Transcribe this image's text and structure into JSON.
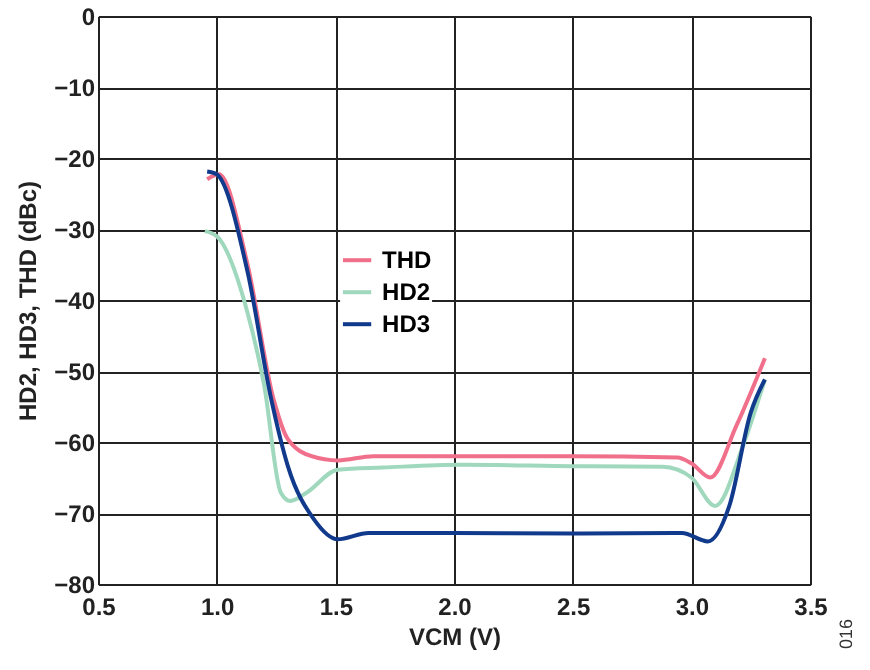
{
  "chart_data": {
    "type": "line",
    "xlabel": "VCM (V)",
    "ylabel": "HD2, HD3, THD (dBc)",
    "xlim": [
      0.5,
      3.5
    ],
    "xticks": [
      {
        "value": 0.5,
        "label": "0.5"
      },
      {
        "value": 1,
        "label": "1.0"
      },
      {
        "value": 1.5,
        "label": "1.5"
      },
      {
        "value": 2,
        "label": "2.0"
      },
      {
        "value": 2.5,
        "label": "2.5"
      },
      {
        "value": 3,
        "label": "3.0"
      },
      {
        "value": 3.5,
        "label": "3.5"
      }
    ],
    "ylim": [
      -80,
      0
    ],
    "yticks": [
      0,
      {
        "value": -10,
        "label": "−10"
      },
      {
        "value": -20,
        "label": "−20"
      },
      {
        "value": -30,
        "label": "−30"
      },
      {
        "value": -40,
        "label": "−40"
      },
      {
        "value": -50,
        "label": "−50"
      },
      {
        "value": -60,
        "label": "−60"
      },
      {
        "value": -70,
        "label": "−70"
      },
      {
        "value": -80,
        "label": "−80"
      }
    ],
    "grid": true,
    "legend": "center",
    "marker": "none",
    "line_style": "solid",
    "annotations": [
      "016"
    ],
    "series": [
      {
        "name": "THD",
        "color": "#f06f8a",
        "x": [
          0.96,
          1.01,
          1.13,
          1.24,
          1.3,
          1.4,
          1.51,
          1.66,
          2.0,
          2.5,
          2.94,
          3.0,
          3.08,
          3.19,
          3.31
        ],
        "values": [
          -23,
          -22.3,
          -35,
          -54,
          -59.6,
          -62,
          -62.6,
          -62,
          -62,
          -62,
          -62.2,
          -63,
          -65,
          -57.7,
          -48.2
        ]
      },
      {
        "name": "HD2",
        "color": "#9fd8bd",
        "x": [
          0.95,
          1.0,
          1.13,
          1.2,
          1.27,
          1.31,
          1.38,
          1.51,
          1.7,
          2.03,
          2.5,
          2.88,
          3.0,
          3.1,
          3.22,
          3.31
        ],
        "values": [
          -30.3,
          -31,
          -41.8,
          -52,
          -67.1,
          -68.3,
          -67.1,
          -63.9,
          -63.6,
          -63.2,
          -63.4,
          -63.5,
          -65,
          -69,
          -60.3,
          -51.2
        ]
      },
      {
        "name": "HD3",
        "color": "#123a8c",
        "x": [
          0.96,
          1.0,
          1.13,
          1.23,
          1.3,
          1.41,
          1.51,
          1.64,
          2.0,
          2.5,
          2.96,
          3.07,
          3.16,
          3.25,
          3.31
        ],
        "values": [
          -21.9,
          -22.3,
          -36,
          -54,
          -63.4,
          -70.9,
          -73.7,
          -72.8,
          -72.8,
          -72.9,
          -72.8,
          -74,
          -69,
          -55.9,
          -51.2
        ]
      }
    ]
  }
}
